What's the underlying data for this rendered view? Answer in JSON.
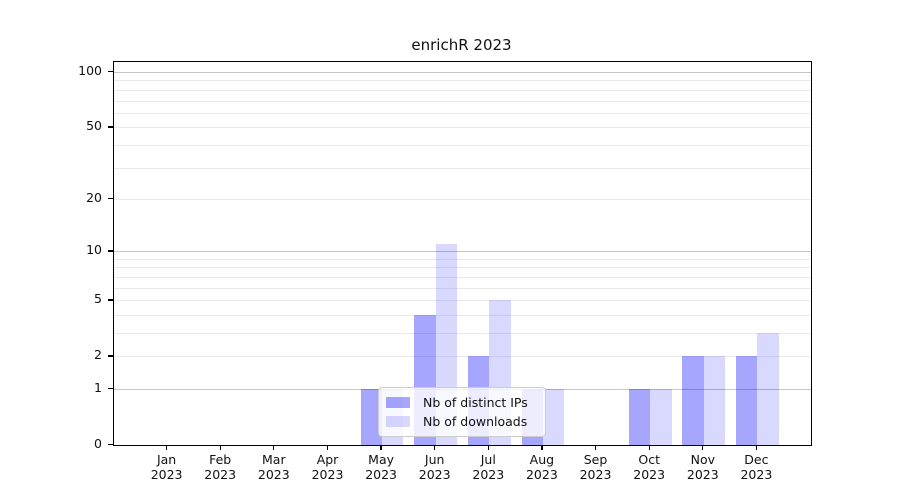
{
  "chart_data": {
    "type": "bar",
    "title": "enrichR 2023",
    "categories": [
      {
        "line1": "Jan",
        "line2": "2023"
      },
      {
        "line1": "Feb",
        "line2": "2023"
      },
      {
        "line1": "Mar",
        "line2": "2023"
      },
      {
        "line1": "Apr",
        "line2": "2023"
      },
      {
        "line1": "May",
        "line2": "2023"
      },
      {
        "line1": "Jun",
        "line2": "2023"
      },
      {
        "line1": "Jul",
        "line2": "2023"
      },
      {
        "line1": "Aug",
        "line2": "2023"
      },
      {
        "line1": "Sep",
        "line2": "2023"
      },
      {
        "line1": "Oct",
        "line2": "2023"
      },
      {
        "line1": "Nov",
        "line2": "2023"
      },
      {
        "line1": "Dec",
        "line2": "2023"
      }
    ],
    "series": [
      {
        "name": "Nb of distinct IPs",
        "color": "rgba(0,0,255,0.35)",
        "values": [
          0,
          0,
          0,
          0,
          1,
          4,
          2,
          1,
          0,
          1,
          2,
          2
        ]
      },
      {
        "name": "Nb of downloads",
        "color": "rgba(0,0,255,0.15)",
        "values": [
          0,
          0,
          0,
          0,
          1,
          11,
          5,
          1,
          0,
          1,
          2,
          3
        ]
      }
    ],
    "y_axis": {
      "scale": "log1p",
      "min": 0,
      "max": 113.3,
      "labeled_ticks": [
        0,
        1,
        2,
        5,
        10,
        20,
        50,
        100
      ],
      "major_gridlines": [
        1,
        10,
        100
      ],
      "minor_gridlines": [
        2,
        3,
        4,
        5,
        6,
        7,
        8,
        9,
        20,
        30,
        40,
        50,
        60,
        70,
        80,
        90
      ]
    },
    "legend": {
      "position": "lower center"
    },
    "grid": "on",
    "xlabel": "",
    "ylabel": ""
  },
  "colors": {
    "major_grid": "#c6c6c6",
    "minor_grid": "#ebebeb",
    "spine": "#000000",
    "text": "#111111",
    "background": "#ffffff"
  }
}
